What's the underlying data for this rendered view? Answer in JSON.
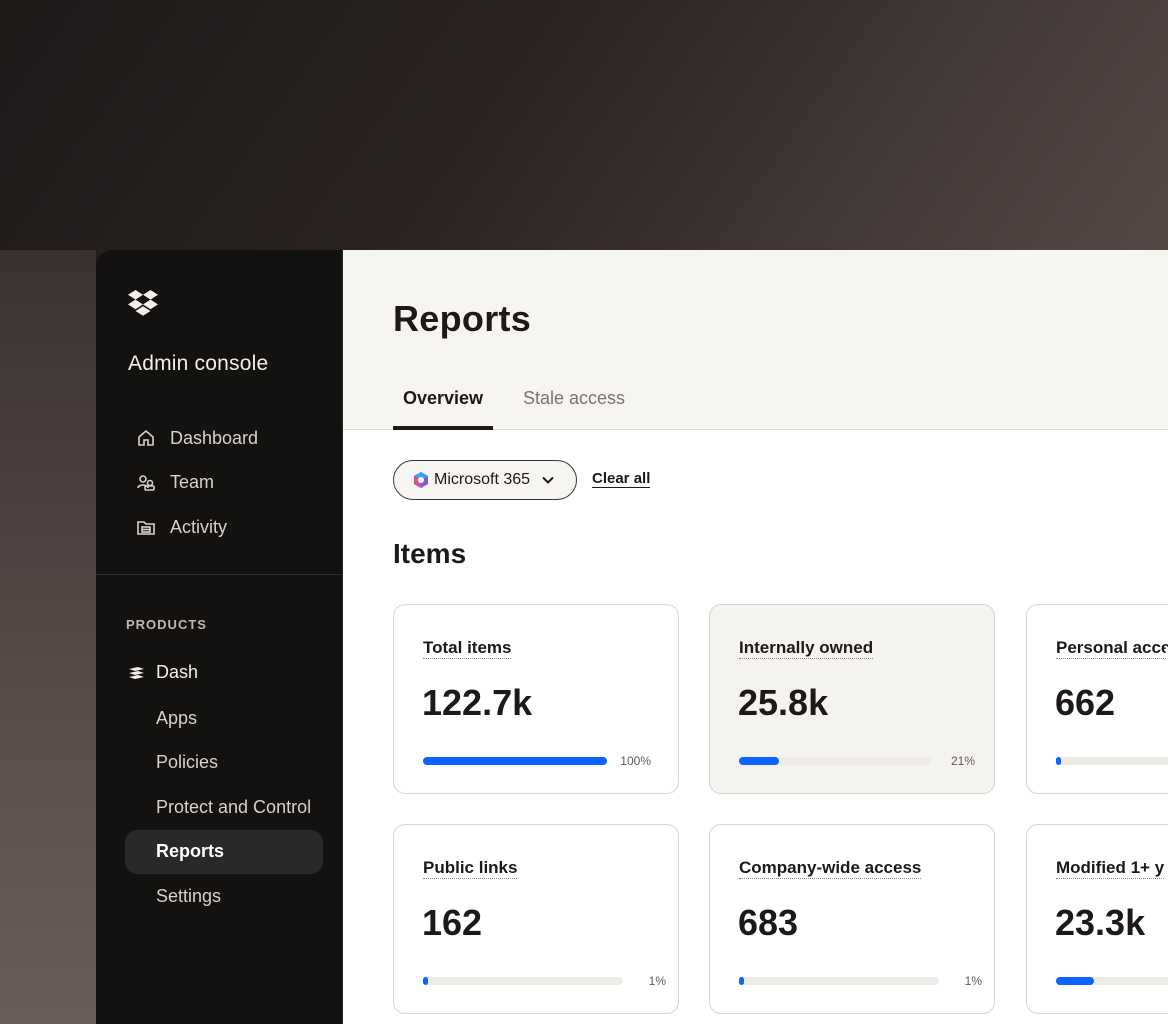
{
  "sidebar": {
    "title": "Admin console",
    "nav": [
      {
        "label": "Dashboard",
        "icon": "home-icon"
      },
      {
        "label": "Team",
        "icon": "team-icon"
      },
      {
        "label": "Activity",
        "icon": "activity-icon"
      }
    ],
    "products_label": "PRODUCTS",
    "product": {
      "label": "Dash",
      "icon": "dash-icon"
    },
    "sub_items": [
      {
        "label": "Apps"
      },
      {
        "label": "Policies"
      },
      {
        "label": "Protect and Control"
      },
      {
        "label": "Reports",
        "active": true
      },
      {
        "label": "Settings"
      }
    ]
  },
  "header": {
    "title": "Reports",
    "tabs": [
      {
        "label": "Overview",
        "active": true
      },
      {
        "label": "Stale access"
      }
    ]
  },
  "filters": {
    "chip_label": "Microsoft 365",
    "chip_icon": "microsoft-365-icon",
    "clear_label": "Clear all"
  },
  "items": {
    "title": "Items",
    "cards": [
      {
        "label": "Total items",
        "value": "122.7k",
        "percent": 100,
        "percent_label": "100%"
      },
      {
        "label": "Internally owned",
        "value": "25.8k",
        "percent": 21,
        "percent_label": "21%"
      },
      {
        "label": "Personal acce",
        "value": "662",
        "percent": 1,
        "percent_label": ""
      },
      {
        "label": "Public links",
        "value": "162",
        "percent": 1,
        "percent_label": "1%"
      },
      {
        "label": "Company-wide access",
        "value": "683",
        "percent": 1,
        "percent_label": "1%"
      },
      {
        "label": "Modified 1+ y",
        "value": "23.3k",
        "percent": 19,
        "percent_label": ""
      }
    ]
  },
  "colors": {
    "accent": "#0d63ff",
    "sidebar_bg": "#131211"
  }
}
